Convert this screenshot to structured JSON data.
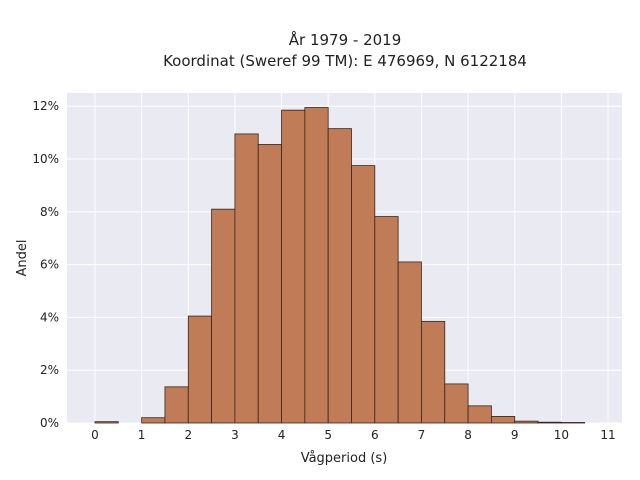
{
  "chart_data": {
    "type": "bar",
    "title_line1": "År 1979 - 2019",
    "title_line2": "Koordinat (Sweref 99 TM): E 476969, N 6122184",
    "xlabel": "Vågperiod (s)",
    "ylabel": "Andel",
    "xlim": [
      -0.6,
      11.3
    ],
    "ylim": [
      0,
      12.5
    ],
    "x_ticks": [
      0,
      1,
      2,
      3,
      4,
      5,
      6,
      7,
      8,
      9,
      10,
      11
    ],
    "y_ticks": [
      0,
      2,
      4,
      6,
      8,
      10,
      12
    ],
    "y_tick_labels": [
      "0%",
      "2%",
      "4%",
      "6%",
      "8%",
      "10%",
      "12%"
    ],
    "bin_width": 0.5,
    "bin_starts": [
      0,
      0.5,
      1,
      1.5,
      2,
      2.5,
      3,
      3.5,
      4,
      4.5,
      5,
      5.5,
      6,
      6.5,
      7,
      7.5,
      8,
      8.5,
      9,
      9.5,
      10,
      10.5
    ],
    "values": [
      0.05,
      0,
      0.2,
      1.37,
      4.05,
      8.1,
      10.95,
      10.55,
      11.85,
      11.95,
      11.15,
      9.75,
      7.82,
      6.1,
      3.85,
      1.48,
      0.65,
      0.25,
      0.07,
      0.03,
      0.02,
      0
    ],
    "grid": true,
    "bar_color": "#c07c56",
    "bar_edge_color": "#3a2418",
    "plot_background": "#eaeaf2",
    "grid_color": "#ffffff"
  }
}
